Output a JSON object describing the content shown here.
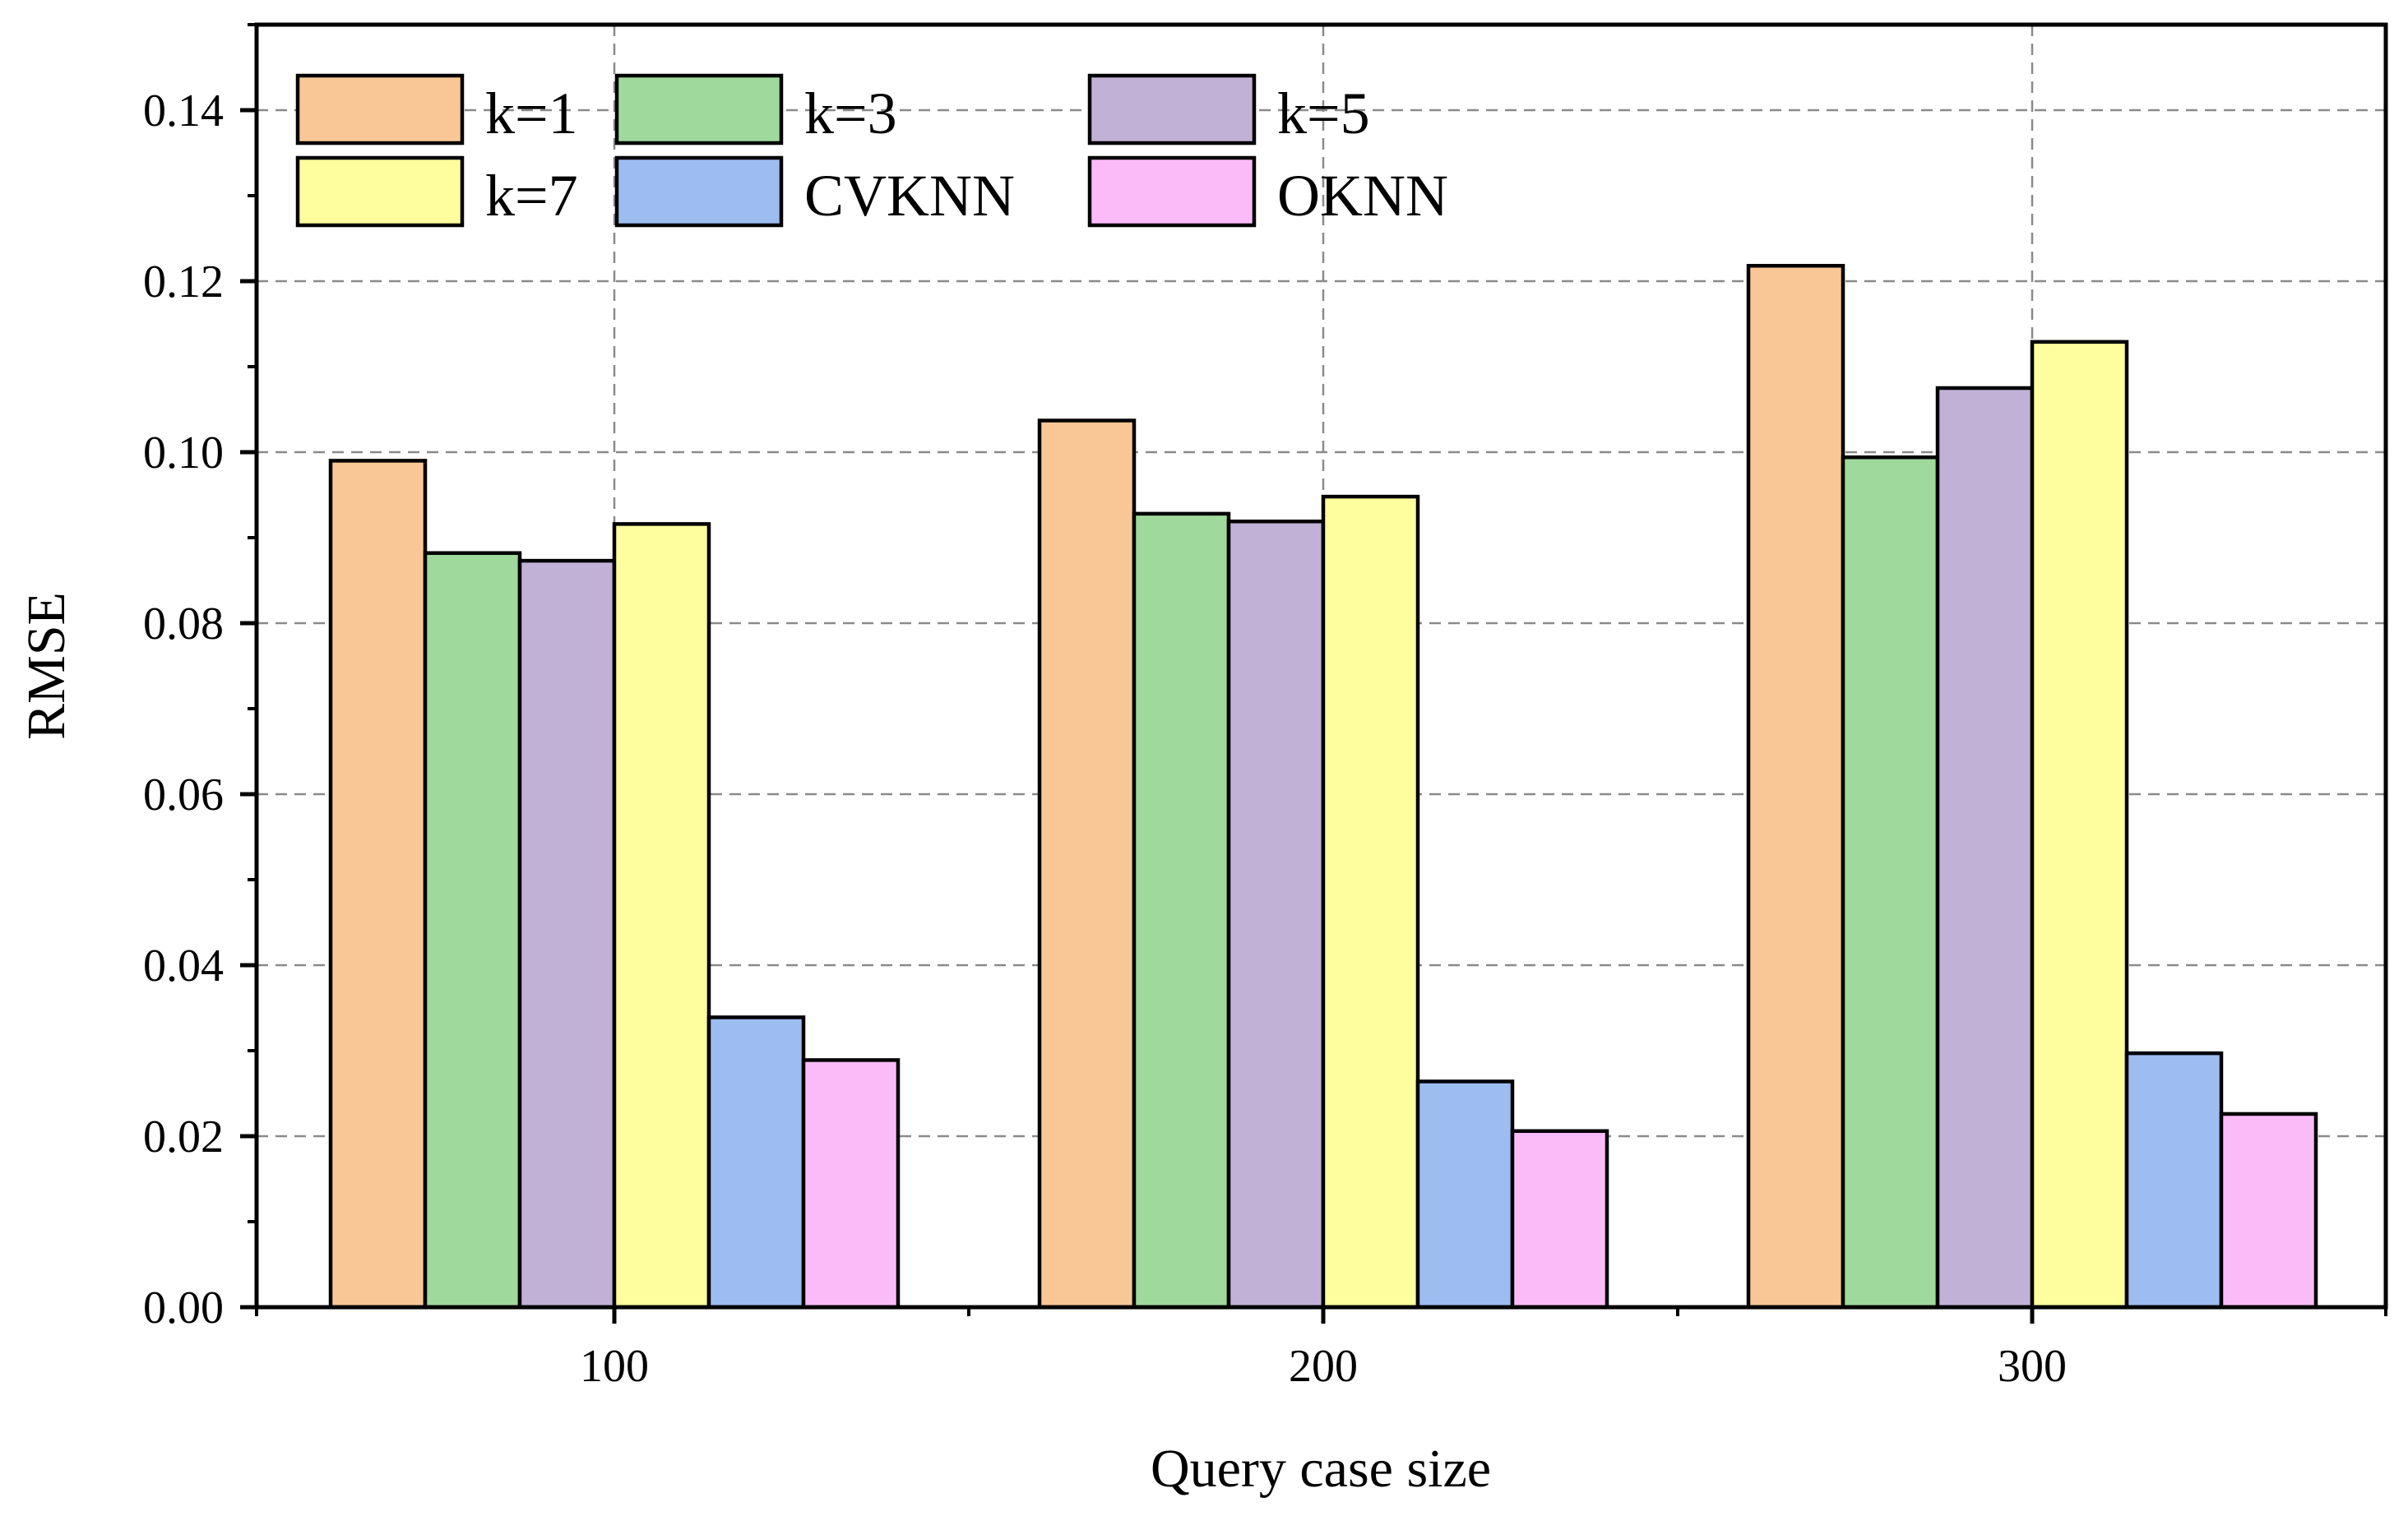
{
  "chart_data": {
    "type": "bar",
    "title": "",
    "xlabel": "Query case size",
    "ylabel": "RMSE",
    "categories": [
      "100",
      "200",
      "300"
    ],
    "ylim": [
      0,
      0.15
    ],
    "yticks": [
      "0.00",
      "0.02",
      "0.04",
      "0.06",
      "0.08",
      "0.10",
      "0.12",
      "0.14"
    ],
    "grid": true,
    "legend_position": "top-left",
    "series": [
      {
        "name": "k=1",
        "color": "#F9C795",
        "values": [
          0.099,
          0.1037,
          0.1218
        ]
      },
      {
        "name": "k=3",
        "color": "#9FD99C",
        "values": [
          0.0882,
          0.0928,
          0.0994
        ]
      },
      {
        "name": "k=5",
        "color": "#C2B1D6",
        "values": [
          0.0873,
          0.0919,
          0.1075
        ]
      },
      {
        "name": "k=7",
        "color": "#FEFE9E",
        "values": [
          0.0916,
          0.0948,
          0.1129
        ]
      },
      {
        "name": "CVKNN",
        "color": "#9DBDF1",
        "values": [
          0.0339,
          0.0264,
          0.0297
        ]
      },
      {
        "name": "OKNN",
        "color": "#FBBBF8",
        "values": [
          0.0289,
          0.0206,
          0.0226
        ]
      }
    ]
  }
}
